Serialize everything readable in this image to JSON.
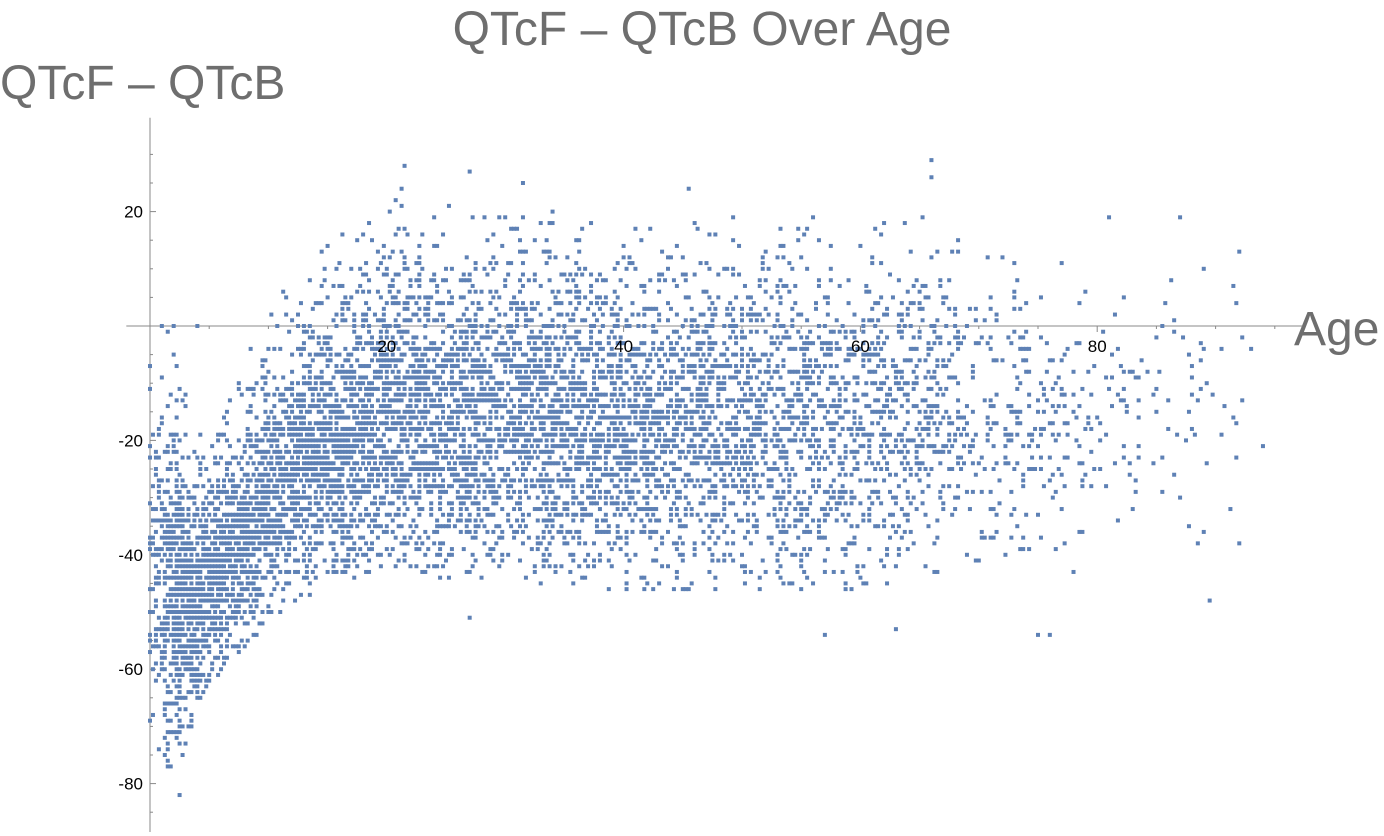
{
  "chart_data": {
    "type": "scatter",
    "title": "QTcF – QTcB Over Age",
    "xlabel": "Age",
    "ylabel": "QTcF – QTcB",
    "xlim": [
      -2,
      97
    ],
    "ylim": [
      -88,
      35
    ],
    "x_ticks": [
      "20",
      "40",
      "60",
      "80"
    ],
    "y_ticks": [
      "20",
      "-20",
      "-40",
      "-60",
      "-80"
    ],
    "grid": false,
    "legend": "none",
    "point_color": "#5e81b5",
    "point_shape": "square",
    "density_profile": [
      {
        "age": 0,
        "y_min": -70,
        "y_max": 0,
        "density": 0.25
      },
      {
        "age": 2,
        "y_min": -82,
        "y_max": 0,
        "density": 0.5
      },
      {
        "age": 4,
        "y_min": -66,
        "y_max": -20,
        "density": 0.6
      },
      {
        "age": 6,
        "y_min": -60,
        "y_max": -12,
        "density": 0.6
      },
      {
        "age": 8,
        "y_min": -56,
        "y_max": -6,
        "density": 0.55
      },
      {
        "age": 10,
        "y_min": -52,
        "y_max": 2,
        "density": 0.55
      },
      {
        "age": 12,
        "y_min": -48,
        "y_max": 8,
        "density": 0.5
      },
      {
        "age": 15,
        "y_min": -46,
        "y_max": 15,
        "density": 0.5
      },
      {
        "age": 18,
        "y_min": -44,
        "y_max": 18,
        "density": 0.45
      },
      {
        "age": 20,
        "y_min": -42,
        "y_max": 24,
        "density": 0.45
      },
      {
        "age": 25,
        "y_min": -44,
        "y_max": 22,
        "density": 0.4
      },
      {
        "age": 30,
        "y_min": -44,
        "y_max": 22,
        "density": 0.4
      },
      {
        "age": 35,
        "y_min": -45,
        "y_max": 20,
        "density": 0.4
      },
      {
        "age": 40,
        "y_min": -46,
        "y_max": 20,
        "density": 0.38
      },
      {
        "age": 45,
        "y_min": -46,
        "y_max": 20,
        "density": 0.35
      },
      {
        "age": 50,
        "y_min": -46,
        "y_max": 20,
        "density": 0.32
      },
      {
        "age": 55,
        "y_min": -46,
        "y_max": 19,
        "density": 0.28
      },
      {
        "age": 60,
        "y_min": -46,
        "y_max": 20,
        "density": 0.24
      },
      {
        "age": 65,
        "y_min": -44,
        "y_max": 22,
        "density": 0.2
      },
      {
        "age": 70,
        "y_min": -42,
        "y_max": 14,
        "density": 0.15
      },
      {
        "age": 75,
        "y_min": -40,
        "y_max": 12,
        "density": 0.1
      },
      {
        "age": 80,
        "y_min": -36,
        "y_max": 14,
        "density": 0.06
      },
      {
        "age": 85,
        "y_min": -30,
        "y_max": 12,
        "density": 0.035
      },
      {
        "age": 90,
        "y_min": -48,
        "y_max": 16,
        "density": 0.02
      },
      {
        "age": 95,
        "y_min": -22,
        "y_max": 10,
        "density": 0.01
      }
    ],
    "notable_points": [
      {
        "x": 2.5,
        "y": -82
      },
      {
        "x": 21.5,
        "y": 28
      },
      {
        "x": 66,
        "y": 29
      },
      {
        "x": 66,
        "y": 26
      },
      {
        "x": 31.5,
        "y": 25
      },
      {
        "x": 27,
        "y": 27
      },
      {
        "x": 45.5,
        "y": 24
      },
      {
        "x": 1.5,
        "y": -71
      },
      {
        "x": 0,
        "y": -69
      },
      {
        "x": 27,
        "y": -51
      },
      {
        "x": 57,
        "y": -54
      },
      {
        "x": 63,
        "y": -53
      },
      {
        "x": 75,
        "y": -54
      },
      {
        "x": 76,
        "y": -54
      },
      {
        "x": 89.5,
        "y": -48
      },
      {
        "x": 89,
        "y": -36
      },
      {
        "x": 87,
        "y": -30
      },
      {
        "x": 94,
        "y": -21
      },
      {
        "x": 93,
        "y": -4
      },
      {
        "x": 92,
        "y": 13
      },
      {
        "x": 87,
        "y": 19
      },
      {
        "x": 81,
        "y": 19
      },
      {
        "x": 78,
        "y": -43
      },
      {
        "x": 83,
        "y": -32
      },
      {
        "x": 1,
        "y": 0
      },
      {
        "x": 2,
        "y": 0
      },
      {
        "x": 4,
        "y": 0
      }
    ]
  }
}
